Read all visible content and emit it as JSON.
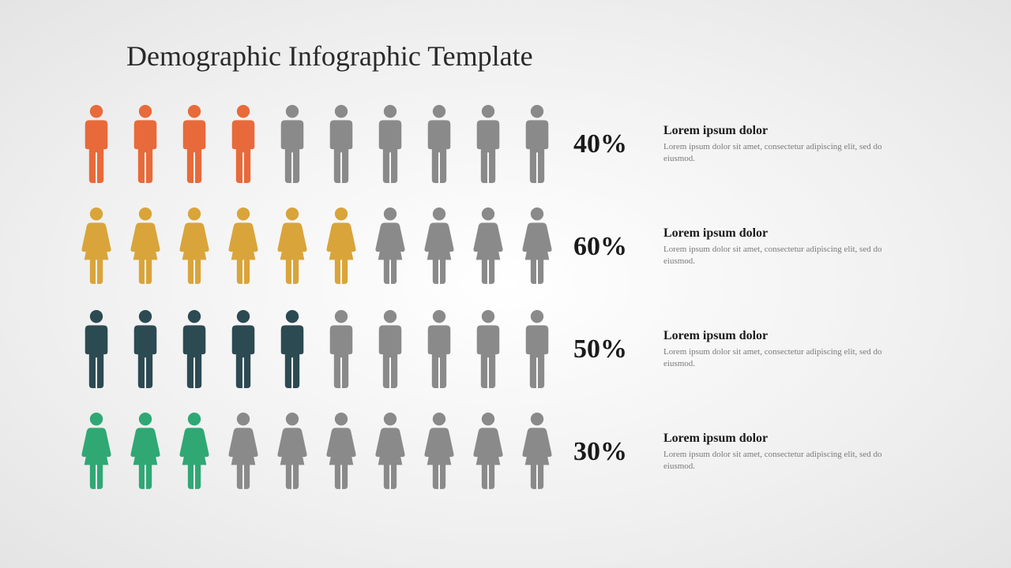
{
  "type": "infographic",
  "title": "Demographic Infographic Template",
  "title_fontsize": 36,
  "title_color": "#2a2a2a",
  "background": "radial-gradient #ffffff to #e4e4e4",
  "inactive_color": "#8a8a8a",
  "icon_count_per_row": 10,
  "rows": [
    {
      "icon": "male",
      "filled": 4,
      "fill_color": "#e86a3a",
      "percent": "40%",
      "heading": "Lorem ipsum dolor",
      "body": "Lorem ipsum dolor sit amet, consectetur adipiscing elit, sed do eiusmod."
    },
    {
      "icon": "female",
      "filled": 6,
      "fill_color": "#d9a43a",
      "percent": "60%",
      "heading": "Lorem ipsum dolor",
      "body": "Lorem ipsum dolor sit amet, consectetur adipiscing elit, sed do eiusmod."
    },
    {
      "icon": "male",
      "filled": 5,
      "fill_color": "#2c4a52",
      "percent": "50%",
      "heading": "Lorem ipsum dolor",
      "body": "Lorem ipsum dolor sit amet, consectetur adipiscing elit, sed do eiusmod."
    },
    {
      "icon": "female",
      "filled": 3,
      "fill_color": "#2fa874",
      "percent": "30%",
      "heading": "Lorem ipsum dolor",
      "body": "Lorem ipsum dolor sit amet, consectetur adipiscing elit, sed do eiusmod."
    }
  ],
  "percent_fontsize": 34,
  "percent_color": "#1a1a1a",
  "heading_fontsize": 16,
  "heading_color": "#1a1a1a",
  "body_fontsize": 11,
  "body_color": "#7a7a7a"
}
